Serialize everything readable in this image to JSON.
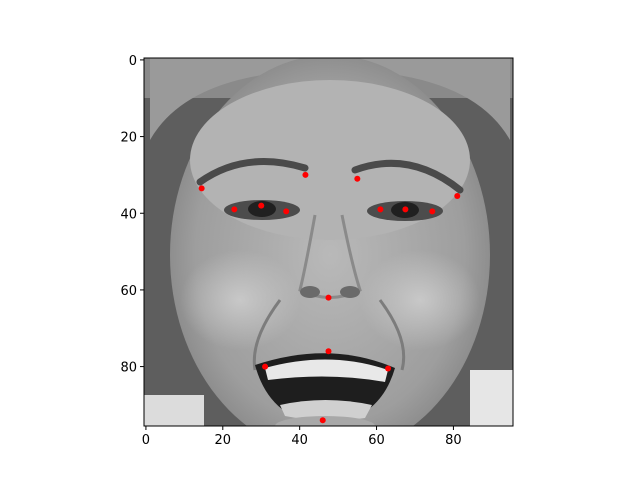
{
  "chart_data": {
    "type": "scatter",
    "title": "",
    "xlabel": "",
    "ylabel": "",
    "xlim": [
      -0.5,
      95.5
    ],
    "ylim": [
      95.5,
      -0.5
    ],
    "y_inverted": true,
    "grid": false,
    "background": "grayscale face photograph",
    "marker_color": "#ff0000",
    "x_ticks": [
      0,
      20,
      40,
      60,
      80
    ],
    "x_tick_labels": [
      "0",
      "20",
      "40",
      "60",
      "80"
    ],
    "y_ticks": [
      0,
      20,
      40,
      60,
      80
    ],
    "y_tick_labels": [
      "0",
      "20",
      "40",
      "60",
      "80"
    ],
    "points": [
      {
        "x": 14.5,
        "y": 33.5
      },
      {
        "x": 23.0,
        "y": 39.0
      },
      {
        "x": 30.0,
        "y": 38.0
      },
      {
        "x": 36.5,
        "y": 39.5
      },
      {
        "x": 41.5,
        "y": 30.0
      },
      {
        "x": 55.0,
        "y": 31.0
      },
      {
        "x": 61.0,
        "y": 39.0
      },
      {
        "x": 67.5,
        "y": 39.0
      },
      {
        "x": 74.5,
        "y": 39.5
      },
      {
        "x": 81.0,
        "y": 35.5
      },
      {
        "x": 47.5,
        "y": 62.0
      },
      {
        "x": 47.5,
        "y": 76.0
      },
      {
        "x": 31.0,
        "y": 80.0
      },
      {
        "x": 63.0,
        "y": 80.5
      },
      {
        "x": 46.0,
        "y": 94.0
      }
    ]
  }
}
